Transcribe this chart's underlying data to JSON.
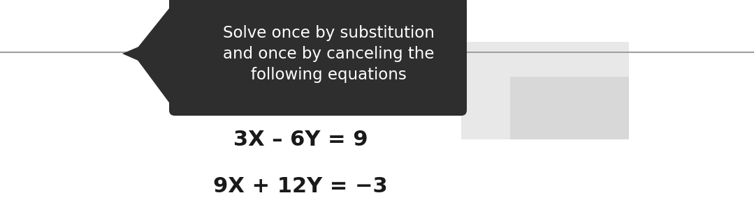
{
  "white_bg": "#ffffff",
  "bubble_color": "#2e2e2e",
  "bubble_text_color": "#ffffff",
  "bubble_text_lines": [
    "Solve once by substitution",
    "and once by canceling the",
    "following equations"
  ],
  "bubble_text_fontsize": 16.5,
  "eq1": "3X – 6Y = 9",
  "eq2": "9X + 12Y = −3",
  "eq_fontsize": 22,
  "eq_color": "#1a1a1a",
  "line_color": "#9aa0a6",
  "gray_box_color": "#d8d8d8",
  "gray_box2_color": "#e8e8e8"
}
